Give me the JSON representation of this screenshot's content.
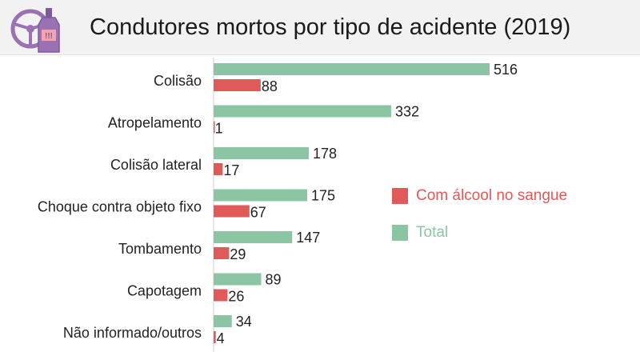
{
  "header": {
    "title": "Condutores mortos por tipo de acidente (2019)",
    "icon": "steering-wheel-bottle-icon",
    "icon_colors": {
      "wheel": "#9a72b3",
      "bottle": "#7e5a9e",
      "label": "#f3a3ad",
      "mark": "#7e5a9e"
    },
    "background": "#f2f2f2"
  },
  "chart_data": {
    "type": "bar",
    "orientation": "horizontal",
    "categories": [
      "Colisão",
      "Atropelamento",
      "Colisão lateral",
      "Choque contra objeto fixo",
      "Tombamento",
      "Capotagem",
      "Não informado/outros"
    ],
    "series": [
      {
        "name": "Total",
        "color": "#8cc5a4",
        "values": [
          516,
          332,
          178,
          175,
          147,
          89,
          34
        ]
      },
      {
        "name": "Com álcool no sangue",
        "color": "#e05a5a",
        "values": [
          88,
          1,
          17,
          67,
          29,
          26,
          4
        ]
      }
    ],
    "legend_order": [
      "Com álcool no sangue",
      "Total"
    ],
    "legend_position": "right",
    "title": "Condutores mortos por tipo de acidente (2019)",
    "xlim": [
      0,
      560
    ],
    "grid": false,
    "data_labels": true
  }
}
